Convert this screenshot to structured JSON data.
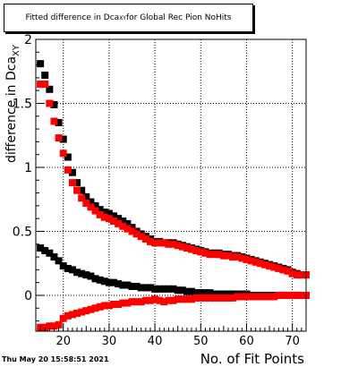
{
  "title": {
    "prefix": "Fitted difference in Dca",
    "sub": "XY",
    "suffix": " for Global Rec Pion NoHits"
  },
  "timestamp": "Thu May 20 15:58:51 2021",
  "chart_data": {
    "type": "scatter",
    "xlabel": "No. of Fit Points",
    "ylabel": "difference in Dca",
    "ylabel_sub": "XY",
    "xlim": [
      14,
      73
    ],
    "ylim": [
      -0.28,
      2.0
    ],
    "xticks": [
      20,
      30,
      40,
      50,
      60,
      70
    ],
    "yticks": [
      0,
      0.5,
      1,
      1.5,
      2
    ],
    "ytick_labels": [
      "0",
      "0.5",
      "1",
      "1.5",
      "2"
    ],
    "grid": true,
    "series": [
      {
        "color": "#000000",
        "x": [
          15,
          16,
          17,
          18,
          19,
          20,
          21,
          22,
          23,
          24,
          25,
          26,
          27,
          28,
          29,
          30,
          31,
          32,
          33,
          34,
          35,
          36,
          37,
          38,
          39,
          40,
          41,
          42,
          43,
          44,
          45,
          46,
          47,
          48,
          49,
          50,
          51,
          52,
          53,
          54,
          55,
          56,
          57,
          58,
          59,
          60,
          61,
          62,
          63,
          64,
          65,
          66,
          67,
          68,
          69,
          70,
          71,
          72,
          73
        ],
        "y": [
          1.81,
          1.72,
          1.61,
          1.49,
          1.35,
          1.22,
          1.08,
          0.96,
          0.88,
          0.82,
          0.77,
          0.73,
          0.7,
          0.67,
          0.65,
          0.64,
          0.62,
          0.6,
          0.58,
          0.56,
          0.53,
          0.5,
          0.48,
          0.46,
          0.44,
          0.42,
          0.42,
          0.41,
          0.41,
          0.41,
          0.4,
          0.39,
          0.38,
          0.37,
          0.36,
          0.35,
          0.34,
          0.33,
          0.33,
          0.33,
          0.32,
          0.32,
          0.31,
          0.31,
          0.3,
          0.29,
          0.28,
          0.27,
          0.26,
          0.25,
          0.24,
          0.23,
          0.22,
          0.21,
          0.2,
          0.18,
          0.17,
          0.16,
          0.16
        ]
      },
      {
        "color": "#ff0000",
        "x": [
          15,
          16,
          17,
          18,
          19,
          20,
          21,
          22,
          23,
          24,
          25,
          26,
          27,
          28,
          29,
          30,
          31,
          32,
          33,
          34,
          35,
          36,
          37,
          38,
          39,
          40,
          41,
          42,
          43,
          44,
          45,
          46,
          47,
          48,
          49,
          50,
          51,
          52,
          53,
          54,
          55,
          56,
          57,
          58,
          59,
          60,
          61,
          62,
          63,
          64,
          65,
          66,
          67,
          68,
          69,
          70,
          71,
          72,
          73
        ],
        "y": [
          1.65,
          1.65,
          1.5,
          1.36,
          1.23,
          1.11,
          0.98,
          0.88,
          0.82,
          0.76,
          0.72,
          0.69,
          0.66,
          0.63,
          0.61,
          0.6,
          0.58,
          0.56,
          0.54,
          0.52,
          0.5,
          0.48,
          0.46,
          0.44,
          0.42,
          0.41,
          0.41,
          0.41,
          0.4,
          0.4,
          0.39,
          0.38,
          0.37,
          0.36,
          0.35,
          0.34,
          0.33,
          0.32,
          0.32,
          0.32,
          0.31,
          0.31,
          0.3,
          0.3,
          0.29,
          0.28,
          0.27,
          0.26,
          0.25,
          0.24,
          0.23,
          0.22,
          0.21,
          0.2,
          0.19,
          0.17,
          0.16,
          0.16,
          0.16
        ]
      },
      {
        "color": "#000000",
        "x": [
          15,
          16,
          17,
          18,
          19,
          20,
          21,
          22,
          23,
          24,
          25,
          26,
          27,
          28,
          29,
          30,
          31,
          32,
          33,
          34,
          35,
          36,
          37,
          38,
          39,
          40,
          41,
          42,
          43,
          44,
          45,
          46,
          47,
          48,
          49,
          50,
          51,
          52,
          53,
          54,
          55,
          56,
          57,
          58,
          59,
          60,
          61,
          62,
          63,
          64,
          65,
          66,
          67,
          68,
          69,
          70,
          71,
          72,
          73
        ],
        "y": [
          0.37,
          0.35,
          0.33,
          0.3,
          0.27,
          0.23,
          0.21,
          0.2,
          0.18,
          0.17,
          0.16,
          0.15,
          0.13,
          0.12,
          0.11,
          0.1,
          0.1,
          0.09,
          0.08,
          0.08,
          0.07,
          0.07,
          0.06,
          0.06,
          0.06,
          0.05,
          0.05,
          0.05,
          0.05,
          0.05,
          0.04,
          0.04,
          0.03,
          0.03,
          0.02,
          0.02,
          0.02,
          0.02,
          0.01,
          0.01,
          0.01,
          0.01,
          0.01,
          0.01,
          0.01,
          0.01,
          0.0,
          0.0,
          0.0,
          0.0,
          0.0,
          0.0,
          0.0,
          0.0,
          0.0,
          0.0,
          0.0,
          0.0,
          0.0
        ]
      },
      {
        "color": "#ff0000",
        "x": [
          15,
          16,
          17,
          18,
          19,
          20,
          21,
          22,
          23,
          24,
          25,
          26,
          27,
          28,
          29,
          30,
          31,
          32,
          33,
          34,
          35,
          36,
          37,
          38,
          39,
          40,
          41,
          42,
          43,
          44,
          45,
          46,
          47,
          48,
          49,
          50,
          51,
          52,
          53,
          54,
          55,
          56,
          57,
          58,
          59,
          60,
          61,
          62,
          63,
          64,
          65,
          66,
          67,
          68,
          69,
          70,
          71,
          72,
          73
        ],
        "y": [
          -0.25,
          -0.25,
          -0.24,
          -0.24,
          -0.23,
          -0.18,
          -0.16,
          -0.15,
          -0.14,
          -0.13,
          -0.12,
          -0.11,
          -0.1,
          -0.09,
          -0.08,
          -0.08,
          -0.07,
          -0.07,
          -0.06,
          -0.06,
          -0.05,
          -0.05,
          -0.05,
          -0.04,
          -0.04,
          -0.03,
          -0.04,
          -0.05,
          -0.04,
          -0.04,
          -0.03,
          -0.03,
          -0.03,
          -0.03,
          -0.02,
          -0.02,
          -0.02,
          -0.02,
          -0.02,
          -0.02,
          -0.02,
          -0.02,
          -0.02,
          -0.01,
          -0.01,
          -0.01,
          -0.01,
          -0.01,
          -0.01,
          -0.01,
          -0.01,
          -0.01,
          0.0,
          0.0,
          0.0,
          0.0,
          0.0,
          0.0,
          0.0
        ]
      }
    ]
  }
}
